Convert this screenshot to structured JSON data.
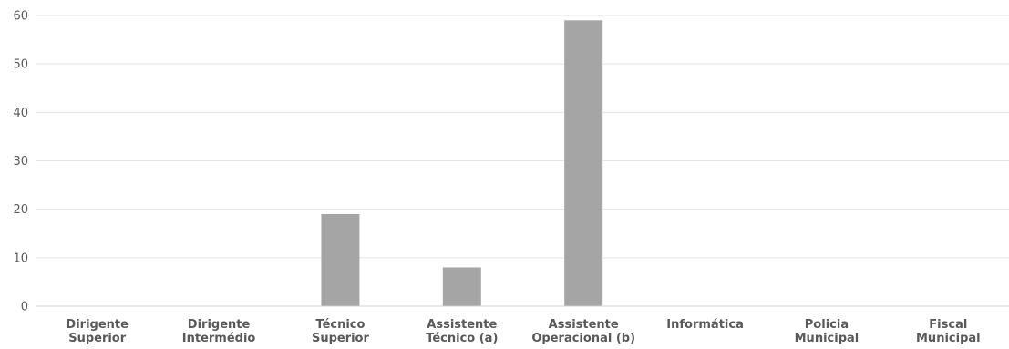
{
  "chart_data": {
    "type": "bar",
    "title": "",
    "xlabel": "",
    "ylabel": "",
    "categories": [
      [
        "Dirigente",
        "Superior"
      ],
      [
        "Dirigente",
        "Intermédio"
      ],
      [
        "Técnico",
        "Superior"
      ],
      [
        "Assistente",
        "Técnico (a)"
      ],
      [
        "Assistente",
        "Operacional (b)"
      ],
      [
        "Informática"
      ],
      [
        "Policia",
        "Municipal"
      ],
      [
        "Fiscal",
        "Municipal"
      ]
    ],
    "values": [
      0,
      0,
      19,
      8,
      59,
      0,
      0,
      0
    ],
    "ylim": [
      0,
      60
    ],
    "yticks": [
      0,
      10,
      20,
      30,
      40,
      50,
      60
    ],
    "grid": true,
    "legend": "none",
    "bar_color": "#a5a5a5",
    "grid_color": "#e3e3e3",
    "text_color": "#595959"
  }
}
